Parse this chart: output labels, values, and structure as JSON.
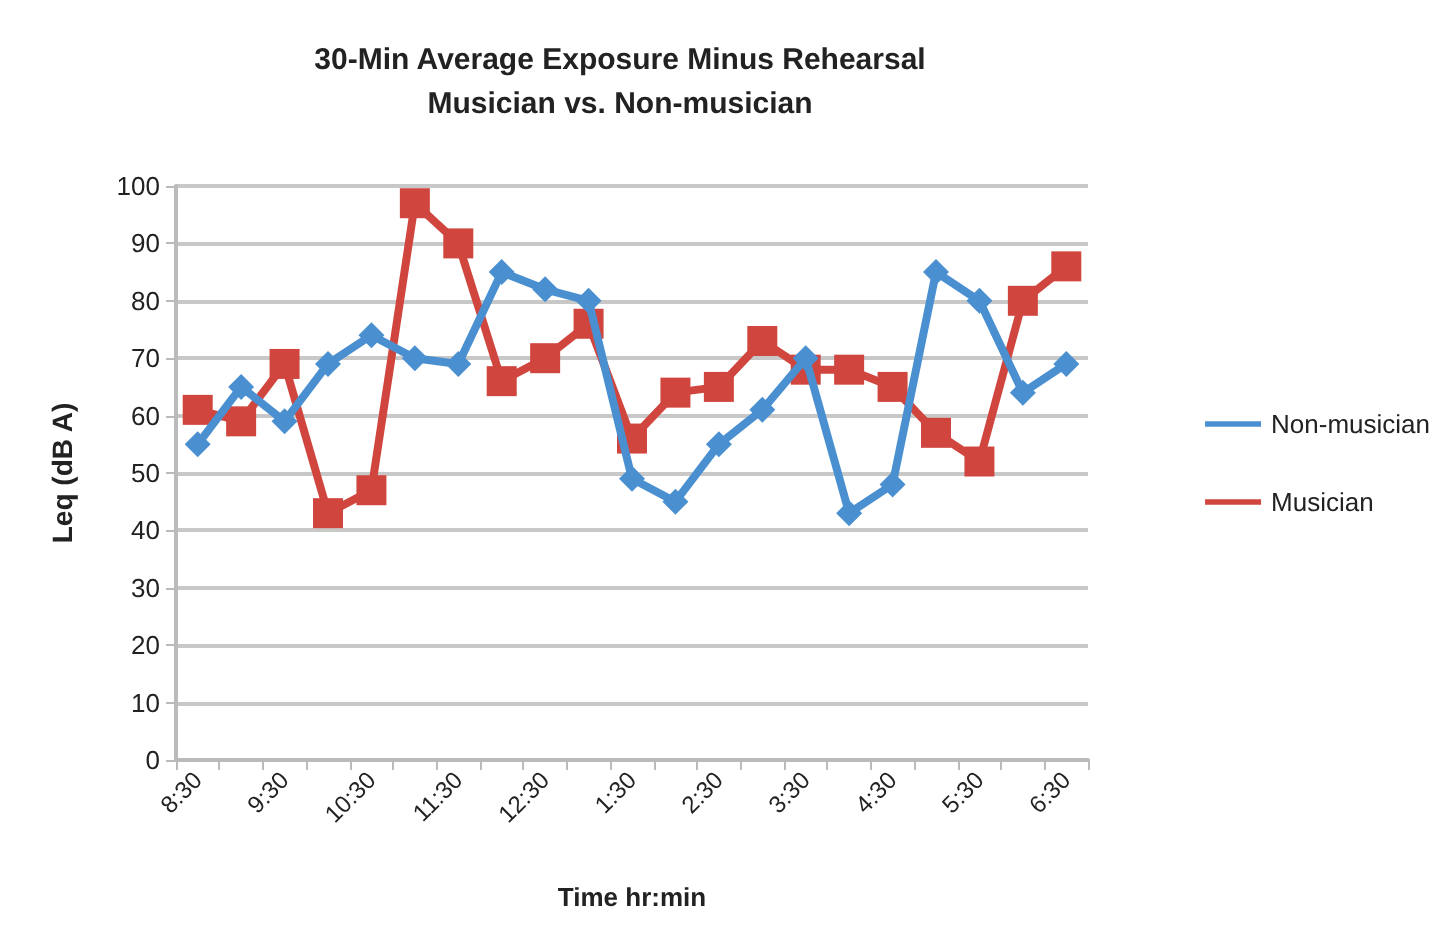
{
  "chart_data": {
    "type": "line",
    "title": "30-Min Average Exposure Minus Rehearsal\nMusician vs. Non-musician",
    "xlabel": "Time hr:min",
    "ylabel": "Leq (dB A)",
    "categories": [
      "8:30",
      null,
      "9:30",
      null,
      "10:30",
      null,
      "11:30",
      null,
      "12:30",
      null,
      "1:30",
      null,
      "2:30",
      null,
      "3:30",
      null,
      "4:30",
      null,
      "5:30",
      null,
      "6:30"
    ],
    "series": [
      {
        "name": "Non-musician",
        "color": "#4a8fd0",
        "marker": "diamond",
        "values": [
          55,
          65,
          59,
          69,
          74,
          70,
          69,
          85,
          82,
          80,
          49,
          45,
          55,
          61,
          70,
          43,
          48,
          85,
          80,
          64,
          69
        ]
      },
      {
        "name": "Musician",
        "color": "#d0463f",
        "marker": "square",
        "values": [
          61,
          59,
          69,
          43,
          47,
          97,
          90,
          66,
          70,
          76,
          56,
          64,
          65,
          73,
          68,
          68,
          65,
          57,
          52,
          80,
          86
        ]
      }
    ],
    "ylim": [
      0,
      100
    ],
    "yticks": [
      0,
      10,
      20,
      30,
      40,
      50,
      60,
      70,
      80,
      90,
      100
    ],
    "grid": "y",
    "legend": "right"
  }
}
